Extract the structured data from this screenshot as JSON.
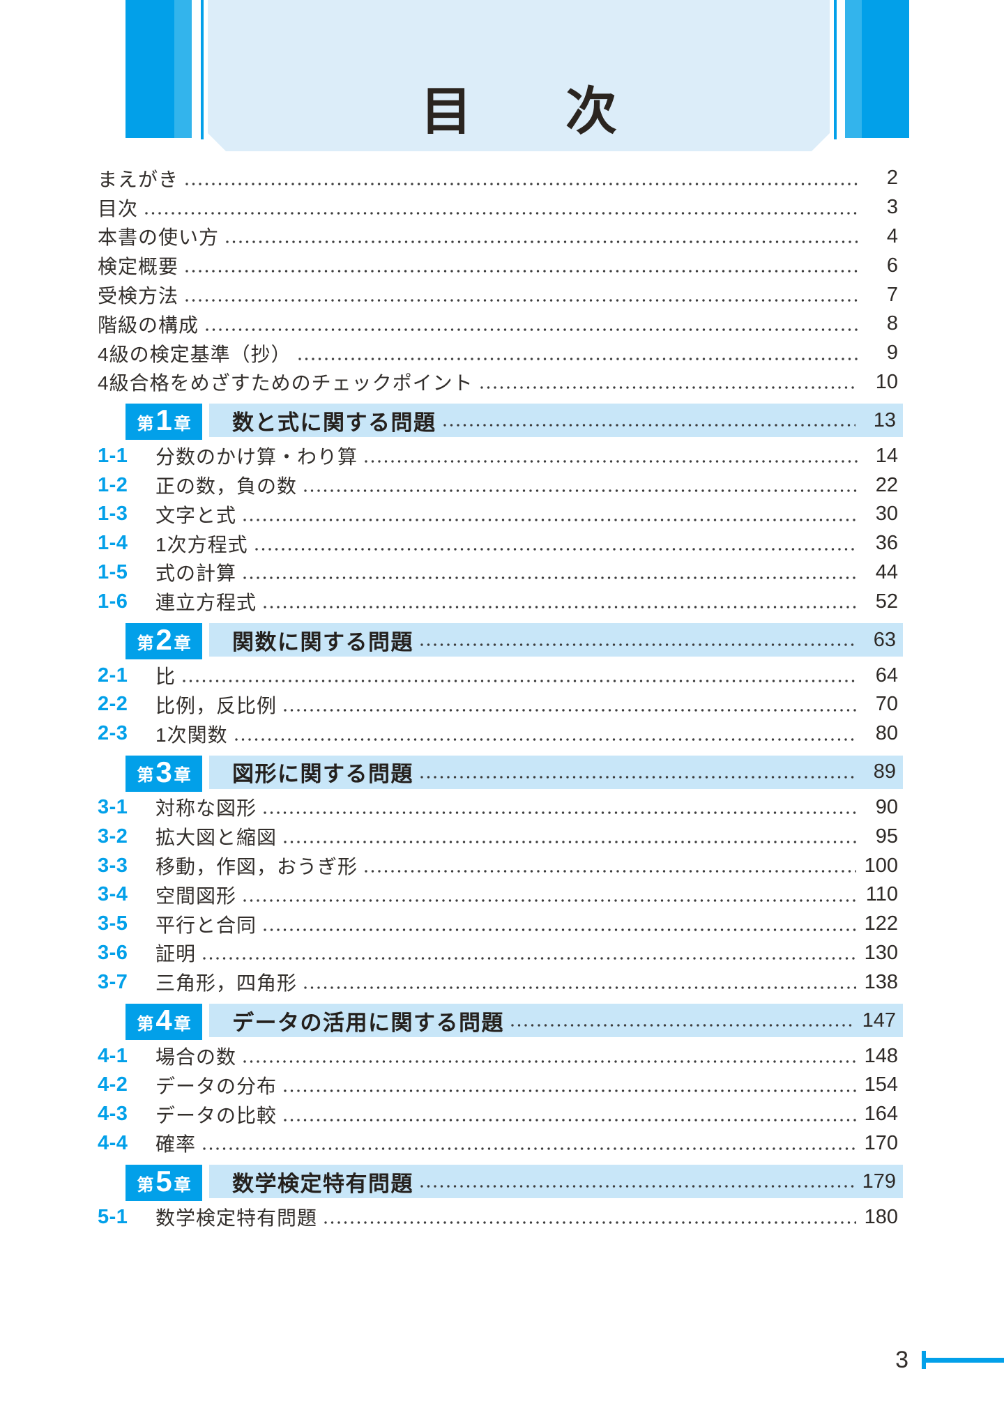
{
  "header": {
    "title": "目　次"
  },
  "front_matter": [
    {
      "label": "まえがき",
      "page": "2"
    },
    {
      "label": "目次",
      "page": "3"
    },
    {
      "label": "本書の使い方",
      "page": "4"
    },
    {
      "label": "検定概要",
      "page": "6"
    },
    {
      "label": "受検方法",
      "page": "7"
    },
    {
      "label": "階級の構成",
      "page": "8"
    },
    {
      "label": "4級の検定基準（抄）",
      "page": "9"
    },
    {
      "label": "4級合格をめざすためのチェックポイント",
      "page": "10"
    }
  ],
  "chapters": [
    {
      "badge": {
        "prefix": "第",
        "number": "1",
        "suffix": "章"
      },
      "title": "数と式に関する問題",
      "page": "13",
      "sections": [
        {
          "number": "1-1",
          "title": "分数のかけ算・わり算",
          "page": "14"
        },
        {
          "number": "1-2",
          "title": "正の数，負の数",
          "page": "22"
        },
        {
          "number": "1-3",
          "title": "文字と式",
          "page": "30"
        },
        {
          "number": "1-4",
          "title": "1次方程式",
          "page": "36"
        },
        {
          "number": "1-5",
          "title": "式の計算",
          "page": "44"
        },
        {
          "number": "1-6",
          "title": "連立方程式",
          "page": "52"
        }
      ]
    },
    {
      "badge": {
        "prefix": "第",
        "number": "2",
        "suffix": "章"
      },
      "title": "関数に関する問題",
      "page": "63",
      "sections": [
        {
          "number": "2-1",
          "title": "比",
          "page": "64"
        },
        {
          "number": "2-2",
          "title": "比例，反比例",
          "page": "70"
        },
        {
          "number": "2-3",
          "title": "1次関数",
          "page": "80"
        }
      ]
    },
    {
      "badge": {
        "prefix": "第",
        "number": "3",
        "suffix": "章"
      },
      "title": "図形に関する問題",
      "page": "89",
      "sections": [
        {
          "number": "3-1",
          "title": "対称な図形",
          "page": "90"
        },
        {
          "number": "3-2",
          "title": "拡大図と縮図",
          "page": "95"
        },
        {
          "number": "3-3",
          "title": "移動，作図，おうぎ形",
          "page": "100"
        },
        {
          "number": "3-4",
          "title": "空間図形",
          "page": "110"
        },
        {
          "number": "3-5",
          "title": "平行と合同",
          "page": "122"
        },
        {
          "number": "3-6",
          "title": "証明",
          "page": "130"
        },
        {
          "number": "3-7",
          "title": "三角形，四角形",
          "page": "138"
        }
      ]
    },
    {
      "badge": {
        "prefix": "第",
        "number": "4",
        "suffix": "章"
      },
      "title": "データの活用に関する問題",
      "page": "147",
      "sections": [
        {
          "number": "4-1",
          "title": "場合の数",
          "page": "148"
        },
        {
          "number": "4-2",
          "title": "データの分布",
          "page": "154"
        },
        {
          "number": "4-3",
          "title": "データの比較",
          "page": "164"
        },
        {
          "number": "4-4",
          "title": "確率",
          "page": "170"
        }
      ]
    },
    {
      "badge": {
        "prefix": "第",
        "number": "5",
        "suffix": "章"
      },
      "title": "数学検定特有問題",
      "page": "179",
      "sections": [
        {
          "number": "5-1",
          "title": "数学検定特有問題",
          "page": "180"
        }
      ]
    }
  ],
  "footer": {
    "page_number": "3"
  },
  "colors": {
    "accent_blue": "#02a0e9",
    "accent_blue_light": "#33b4ec",
    "chapter_bar_bg": "#c8e6f8",
    "header_box_bg": "#dcedf9",
    "text": "#332f2c"
  }
}
